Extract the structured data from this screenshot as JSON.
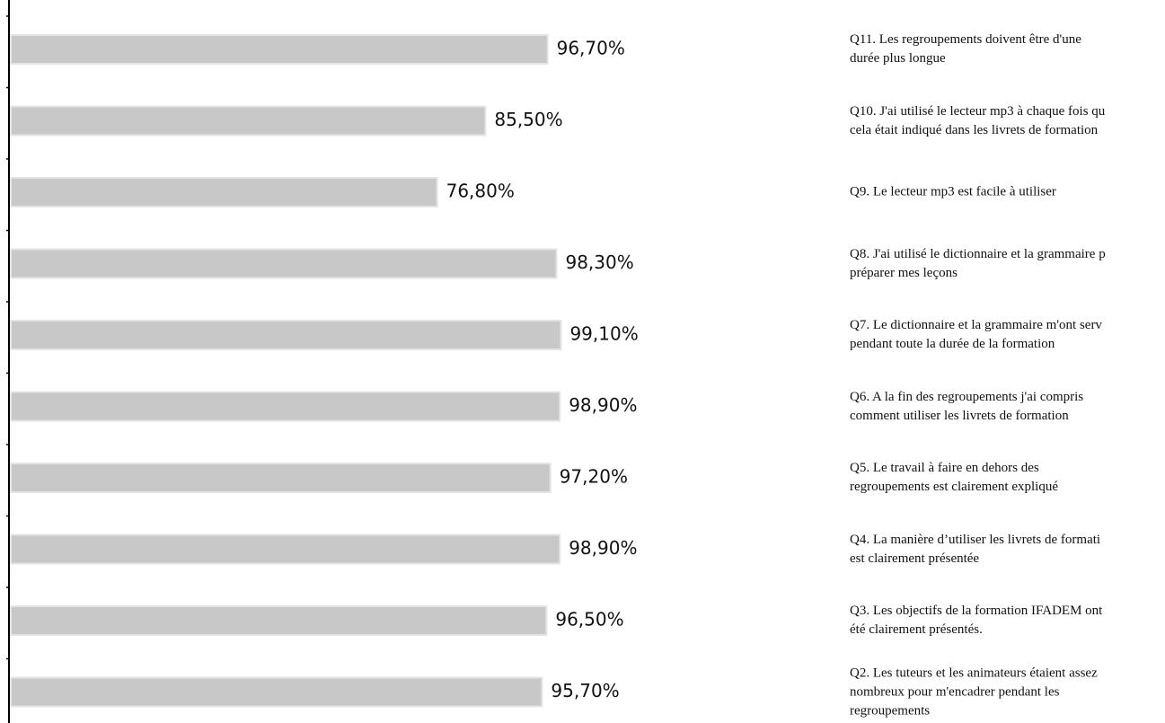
{
  "chart_data": {
    "type": "bar",
    "orientation": "horizontal",
    "categories": [
      "Q11. Les regroupements doivent être d'une\ndurée plus longue",
      "Q10. J'ai utilisé le lecteur mp3 à chaque fois qu\ncela était indiqué dans les livrets de formation",
      "Q9. Le lecteur mp3 est facile à utiliser",
      "Q8. J'ai utilisé le dictionnaire et la grammaire p\npréparer mes leçons",
      "Q7. Le dictionnaire et la grammaire m'ont serv\npendant toute la durée de la formation",
      "Q6. A la fin des regroupements j'ai compris\ncomment utiliser les livrets de formation",
      "Q5. Le travail à faire en dehors des\nregroupements est clairement expliqué",
      "Q4. La manière d’utiliser les livrets de formati\nest clairement présentée",
      "Q3. Les objectifs de la formation IFADEM ont\nété clairement présentés.",
      "Q2. Les tuteurs et les animateurs étaient assez\nnombreux pour m'encadrer pendant les\nregroupements"
    ],
    "values": [
      96.7,
      85.5,
      76.8,
      98.3,
      99.1,
      98.9,
      97.2,
      98.9,
      96.5,
      95.7
    ],
    "value_labels": [
      "96,70%",
      "85,50%",
      "76,80%",
      "98,30%",
      "99,10%",
      "98,90%",
      "97,20%",
      "98,90%",
      "96,50%",
      "95,70%"
    ],
    "color": "#c8c8c8",
    "xlim": [
      0,
      100
    ]
  }
}
